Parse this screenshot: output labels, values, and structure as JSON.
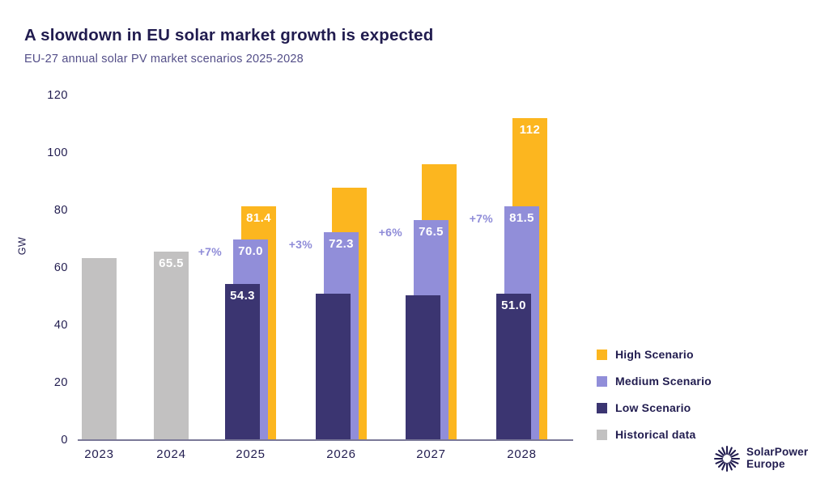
{
  "header": {
    "title": "A slowdown in EU solar market growth is expected",
    "subtitle": "EU-27 annual solar PV market scenarios 2025-2028"
  },
  "chart_data": {
    "type": "bar",
    "title": "A slowdown in EU solar market growth is expected",
    "subtitle": "EU-27 annual solar PV market scenarios 2025-2028",
    "xlabel": "",
    "ylabel": "GW",
    "ylim": [
      0,
      120
    ],
    "yticks": [
      0,
      20,
      40,
      60,
      80,
      100,
      120
    ],
    "grid": false,
    "legend_position": "right",
    "categories": [
      "2023",
      "2024",
      "2025",
      "2026",
      "2027",
      "2028"
    ],
    "series": [
      {
        "name": "High Scenario",
        "color": "#fcb61f",
        "values": [
          null,
          null,
          81.4,
          88,
          96,
          112
        ],
        "value_labels": [
          null,
          null,
          "81.4",
          null,
          null,
          "112"
        ]
      },
      {
        "name": "Medium Scenario",
        "color": "#918ed9",
        "values": [
          null,
          null,
          70.0,
          72.3,
          76.5,
          81.5
        ],
        "value_labels": [
          null,
          null,
          "70.0",
          "72.3",
          "76.5",
          "81.5"
        ]
      },
      {
        "name": "Low Scenario",
        "color": "#3b3571",
        "values": [
          null,
          null,
          54.3,
          51,
          50.5,
          51.0
        ],
        "value_labels": [
          null,
          null,
          "54.3",
          null,
          null,
          "51.0"
        ]
      },
      {
        "name": "Historical data",
        "color": "#c2c1c1",
        "values": [
          63.5,
          65.5,
          null,
          null,
          null,
          null
        ],
        "value_labels": [
          null,
          "65.5",
          null,
          null,
          null,
          null
        ]
      }
    ],
    "growth_labels": [
      null,
      null,
      "+7%",
      "+3%",
      "+6%",
      "+7%"
    ],
    "annotation_color": "#8f8cd8"
  },
  "footer": {
    "logo_line1": "SolarPower",
    "logo_line2": "Europe"
  }
}
